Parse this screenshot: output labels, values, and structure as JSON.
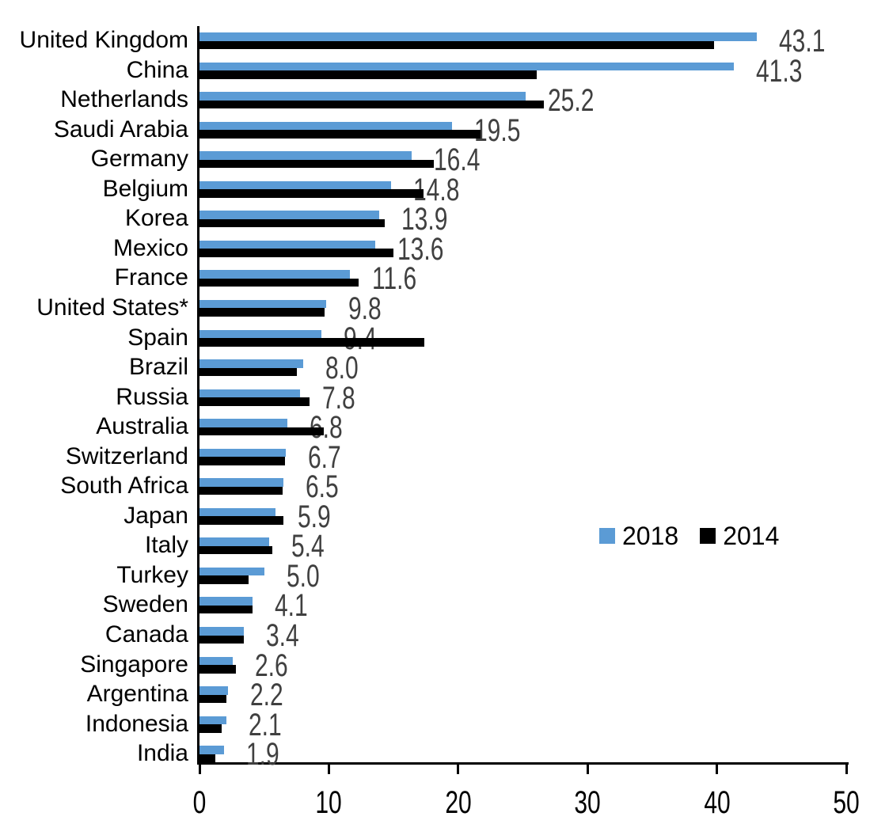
{
  "chart_data": {
    "type": "bar",
    "orientation": "horizontal",
    "title": "",
    "xlabel": "",
    "ylabel": "",
    "xlim": [
      0,
      50
    ],
    "x_ticks": [
      "0",
      "10",
      "20",
      "30",
      "40",
      "50"
    ],
    "grid": false,
    "legend": {
      "position": "middle-right",
      "entries": [
        "2018",
        "2014"
      ]
    },
    "categories": [
      "United Kingdom",
      "China",
      "Netherlands",
      "Saudi Arabia",
      "Germany",
      "Belgium",
      "Korea",
      "Mexico",
      "France",
      "United States*",
      "Spain",
      "Brazil",
      "Russia",
      "Australia",
      "Switzerland",
      "South Africa",
      "Japan",
      "Italy",
      "Turkey",
      "Sweden",
      "Canada",
      "Singapore",
      "Argentina",
      "Indonesia",
      "India"
    ],
    "series": [
      {
        "name": "2018",
        "color": "#5B9BD5",
        "values": [
          43.1,
          41.3,
          25.2,
          19.5,
          16.4,
          14.8,
          13.9,
          13.6,
          11.6,
          9.8,
          9.4,
          8.0,
          7.8,
          6.8,
          6.7,
          6.5,
          5.9,
          5.4,
          5.0,
          4.1,
          3.4,
          2.6,
          2.2,
          2.1,
          1.9
        ],
        "data_labels": [
          "43.1",
          "41.3",
          "25.2",
          "19.5",
          "16.4",
          "14.8",
          "13.9",
          "13.6",
          "11.6",
          "9.8",
          "9.4",
          "8.0",
          "7.8",
          "6.8",
          "6.7",
          "6.5",
          "5.9",
          "5.4",
          "5.0",
          "4.1",
          "3.4",
          "2.6",
          "2.2",
          "2.1",
          "1.9"
        ]
      },
      {
        "name": "2014",
        "color": "#000000",
        "values": [
          39.8,
          26.1,
          26.6,
          21.7,
          18.1,
          17.3,
          14.3,
          15.0,
          12.3,
          9.7,
          17.4,
          7.5,
          8.5,
          9.6,
          6.6,
          6.4,
          6.5,
          5.6,
          3.8,
          4.1,
          3.4,
          2.8,
          2.1,
          1.7,
          1.2
        ],
        "data_labels": []
      }
    ],
    "value_label_color": "#404040",
    "axis_color": "#000000"
  }
}
